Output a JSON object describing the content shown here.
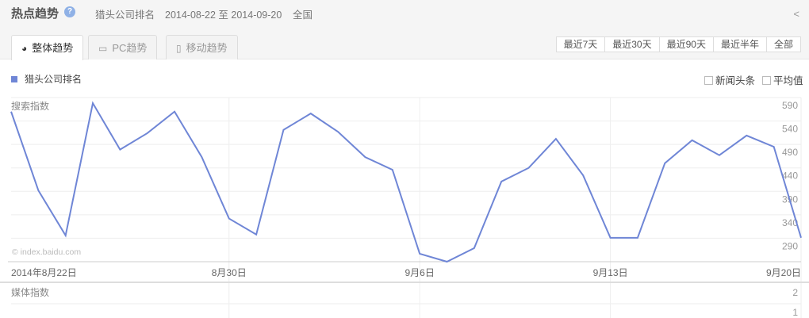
{
  "header": {
    "title": "热点趋势",
    "help_icon": "question-circle-icon",
    "keyword": "猎头公司排名",
    "date_range": "2014-08-22 至 2014-09-20",
    "region": "全国",
    "share_icon": "share-icon"
  },
  "tabs": [
    {
      "label": "整体趋势",
      "icon": "pie-chart-icon",
      "active": true
    },
    {
      "label": "PC趋势",
      "icon": "monitor-icon"
    },
    {
      "label": "移动趋势",
      "icon": "mobile-icon"
    }
  ],
  "ranges": [
    "最近7天",
    "最近30天",
    "最近90天",
    "最近半年",
    "全部"
  ],
  "legend": {
    "series": "猎头公司排名",
    "color": "#6f86d6"
  },
  "options": [
    "新闻头条",
    "平均值"
  ],
  "chart_data": {
    "type": "line",
    "ylabel": "搜索指数",
    "watermark": "© index.baidu.com",
    "yticks": [
      590,
      540,
      490,
      440,
      390,
      340,
      290
    ],
    "ylim": [
      240,
      590
    ],
    "xtick_labels": [
      {
        "index": 0,
        "label": "2014年8月22日"
      },
      {
        "index": 8,
        "label": "8月30日"
      },
      {
        "index": 15,
        "label": "9月6日"
      },
      {
        "index": 22,
        "label": "9月13日"
      },
      {
        "index": 29,
        "label": "9月20日"
      }
    ],
    "series": [
      {
        "name": "猎头公司排名",
        "color": "#6f86d6",
        "values": [
          560,
          392,
          296,
          578,
          479,
          514,
          560,
          463,
          332,
          298,
          521,
          556,
          517,
          463,
          436,
          257,
          240,
          269,
          411,
          440,
          502,
          424,
          291,
          291,
          450,
          499,
          467,
          509,
          485,
          291
        ]
      }
    ],
    "grid": true
  },
  "media_chart": {
    "ylabel": "媒体指数",
    "yticks": [
      2,
      1
    ]
  }
}
